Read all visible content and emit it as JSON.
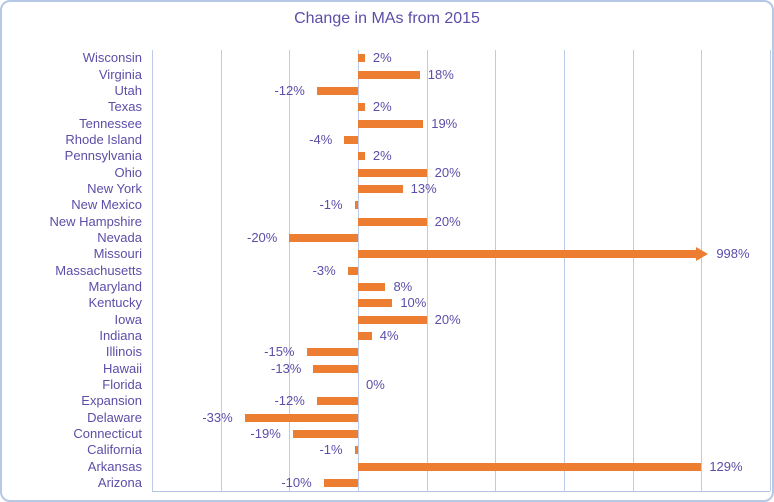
{
  "title": "Change in MAs from 2015",
  "chart_data": {
    "type": "bar",
    "orientation": "horizontal",
    "title": "Change in MAs from 2015",
    "categories": [
      "Wisconsin",
      "Virginia",
      "Utah",
      "Texas",
      "Tennessee",
      "Rhode Island",
      "Pennsylvania",
      "Ohio",
      "New York",
      "New Mexico",
      "New Hampshire",
      "Nevada",
      "Missouri",
      "Massachusetts",
      "Maryland",
      "Kentucky",
      "Iowa",
      "Indiana",
      "Illinois",
      "Hawaii",
      "Florida",
      "Expansion",
      "Delaware",
      "Connecticut",
      "California",
      "Arkansas",
      "Arizona"
    ],
    "values": [
      2,
      18,
      -12,
      2,
      19,
      -4,
      2,
      20,
      13,
      -1,
      20,
      -20,
      998,
      -3,
      8,
      10,
      20,
      4,
      -15,
      -13,
      0,
      -12,
      -33,
      -19,
      -1,
      129,
      -10
    ],
    "data_labels": [
      "2%",
      "18%",
      "-12%",
      "2%",
      "19%",
      "-4%",
      "2%",
      "20%",
      "13%",
      "-1%",
      "20%",
      "-20%",
      "998%",
      "-3%",
      "8%",
      "10%",
      "20%",
      "4%",
      "-15%",
      "-13%",
      "0%",
      "-12%",
      "-33%",
      "-19%",
      "-1%",
      "129%",
      "-10%"
    ],
    "xlim": [
      -60,
      120
    ],
    "grid_step_pct": 20,
    "grid": true,
    "legend": "none",
    "bar_display_cap_pct": 100,
    "clipped_with_arrow": [
      "Missouri"
    ],
    "clipped_flat": [
      "Arkansas"
    ],
    "colors": {
      "bar": "#ED7D31",
      "text": "#5B4EA8",
      "gridline": "#BCCBE9",
      "frame_border": "#B7C8E6",
      "background": "#FFFFFF"
    }
  }
}
